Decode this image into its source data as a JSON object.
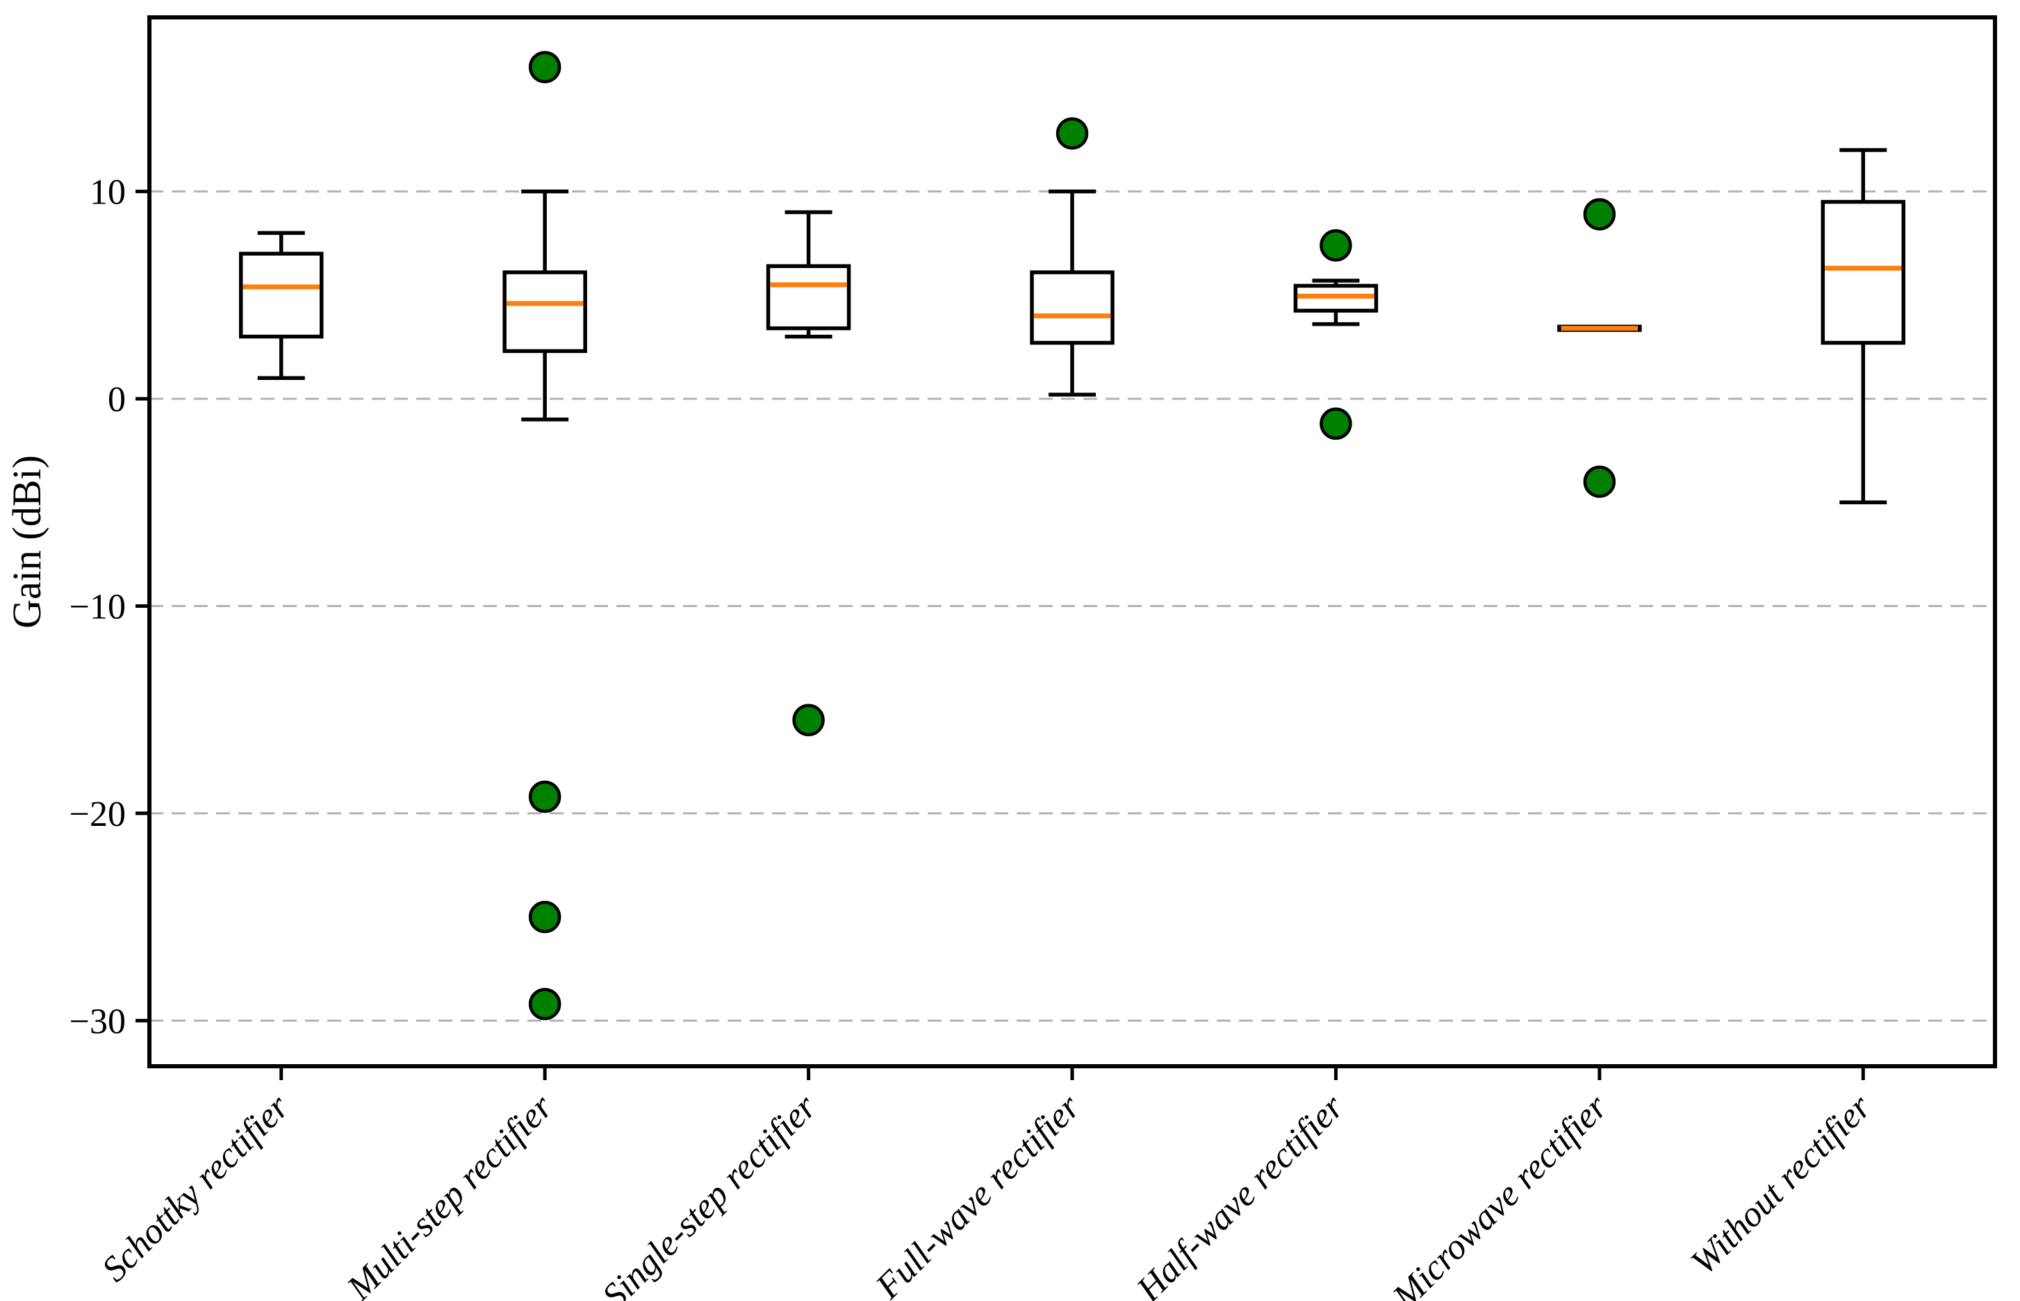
{
  "figure": {
    "background": "#ffffff"
  },
  "chart_data": {
    "type": "box",
    "title": "",
    "xlabel": "",
    "ylabel": "Gain (dBi)",
    "legend": "none",
    "grid": "horizontal-dashed",
    "ylim": [
      -32.2,
      18.4
    ],
    "yticks": [
      {
        "value": 10,
        "label": "10"
      },
      {
        "value": 0,
        "label": "0"
      },
      {
        "value": -10,
        "label": "−10"
      },
      {
        "value": -20,
        "label": "−20"
      },
      {
        "value": -30,
        "label": "−30"
      }
    ],
    "categories": [
      "Schottky rectifier",
      "Multi-step rectifier",
      "Single-step rectifier",
      "Full-wave rectifier",
      "Half-wave rectifier",
      "Microwave rectifier",
      "Without rectifier"
    ],
    "series": [
      {
        "name": "Schottky rectifier",
        "whisker_low": 1.0,
        "q1": 3.0,
        "median": 5.4,
        "q3": 7.0,
        "whisker_high": 8.0,
        "outliers": []
      },
      {
        "name": "Multi-step rectifier",
        "whisker_low": -1.0,
        "q1": 2.3,
        "median": 4.6,
        "q3": 6.1,
        "whisker_high": 10.0,
        "outliers": [
          16.0,
          -19.2,
          -25.0,
          -29.2
        ]
      },
      {
        "name": "Single-step rectifier",
        "whisker_low": 3.0,
        "q1": 3.4,
        "median": 5.5,
        "q3": 6.4,
        "whisker_high": 9.0,
        "outliers": [
          -15.5
        ]
      },
      {
        "name": "Full-wave rectifier",
        "whisker_low": 0.2,
        "q1": 2.7,
        "median": 4.0,
        "q3": 6.1,
        "whisker_high": 10.0,
        "outliers": [
          12.8
        ]
      },
      {
        "name": "Half-wave rectifier",
        "whisker_low": 3.6,
        "q1": 4.25,
        "median": 4.95,
        "q3": 5.45,
        "whisker_high": 5.7,
        "outliers": [
          7.4,
          -1.2
        ]
      },
      {
        "name": "Microwave rectifier",
        "whisker_low": 3.32,
        "q1": 3.32,
        "median": 3.4,
        "q3": 3.48,
        "whisker_high": 3.48,
        "outliers": [
          8.9,
          -4.0
        ]
      },
      {
        "name": "Without rectifier",
        "whisker_low": -5.0,
        "q1": 2.7,
        "median": 6.3,
        "q3": 9.5,
        "whisker_high": 12.0,
        "outliers": []
      }
    ],
    "colors": {
      "box_edge": "#000000",
      "whisker": "#000000",
      "median": "#ff7f0e",
      "outlier_fill": "#008000",
      "outlier_edge": "#000000",
      "grid": "#b3b3b3",
      "spine": "#000000",
      "background": "#ffffff"
    }
  }
}
